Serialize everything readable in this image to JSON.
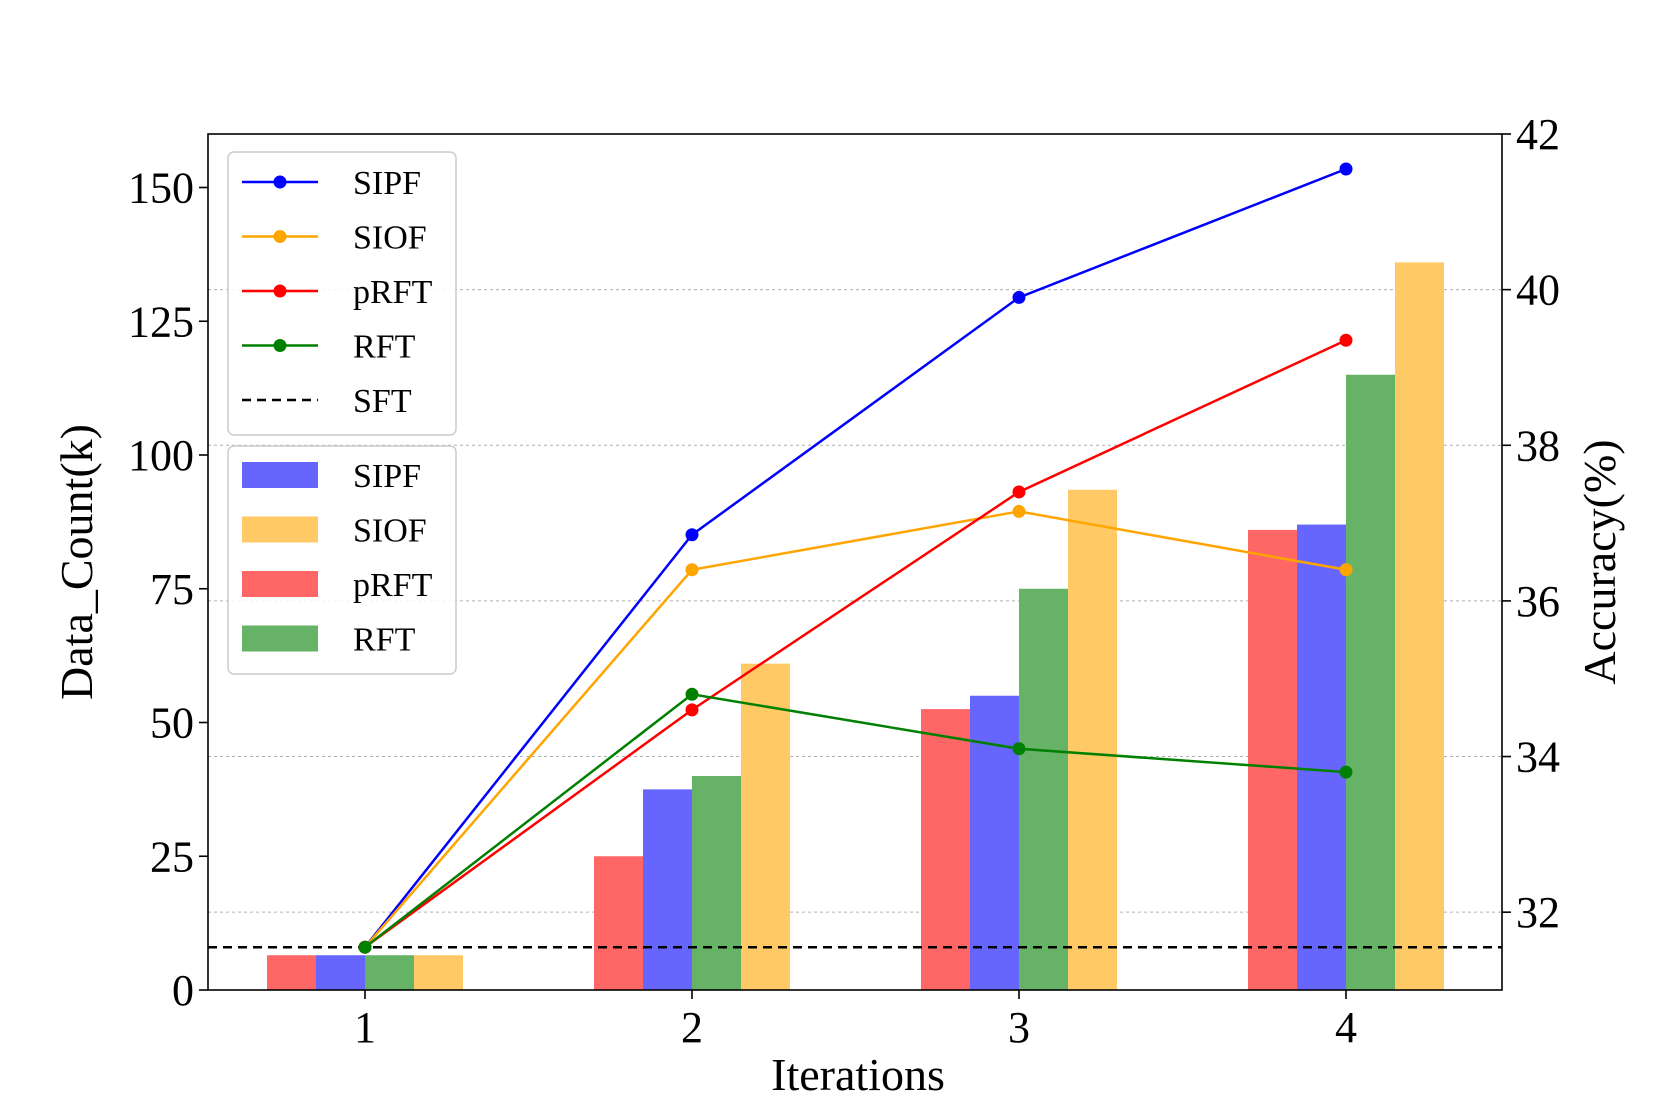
{
  "chart_data": {
    "type": "bar+line",
    "xlabel": "Iterations",
    "ylabel_left": "Data_Count(k)",
    "ylabel_right": "Accuracy(%)",
    "categories": [
      "1",
      "2",
      "3",
      "4"
    ],
    "ylim_left": [
      0,
      160
    ],
    "yticks_left": [
      0,
      25,
      50,
      75,
      100,
      125,
      150
    ],
    "ylim_right": [
      31,
      42
    ],
    "yticks_right": [
      32,
      34,
      36,
      38,
      40,
      42
    ],
    "bar_series": [
      {
        "name": "pRFT",
        "color": "#ff6666",
        "values": [
          6.5,
          25,
          52.5,
          86
        ]
      },
      {
        "name": "SIPF",
        "color": "#6666ff",
        "values": [
          6.5,
          37.5,
          55,
          87
        ]
      },
      {
        "name": "RFT",
        "color": "#66b266",
        "values": [
          6.5,
          40,
          75,
          115
        ]
      },
      {
        "name": "SIOF",
        "color": "#ffc966",
        "values": [
          6.5,
          61,
          93.5,
          136
        ]
      }
    ],
    "line_series": [
      {
        "name": "SIPF",
        "color": "#0000ff",
        "values": [
          31.55,
          36.85,
          39.9,
          41.55
        ]
      },
      {
        "name": "SIOF",
        "color": "#ffa500",
        "values": [
          31.55,
          36.4,
          37.15,
          36.4
        ]
      },
      {
        "name": "pRFT",
        "color": "#ff0000",
        "values": [
          31.55,
          34.6,
          37.4,
          39.35
        ]
      },
      {
        "name": "RFT",
        "color": "#008000",
        "values": [
          31.55,
          34.8,
          34.1,
          33.8
        ]
      }
    ],
    "reference_line": {
      "name": "SFT",
      "color": "#000000",
      "value": 31.55,
      "style": "dashed"
    },
    "line_legend": [
      "SIPF",
      "SIOF",
      "pRFT",
      "RFT",
      "SFT"
    ],
    "bar_legend": [
      "SIPF",
      "SIOF",
      "pRFT",
      "RFT"
    ],
    "legend_placement": "top-left",
    "grid": "horizontal dotted on right axis ticks"
  }
}
